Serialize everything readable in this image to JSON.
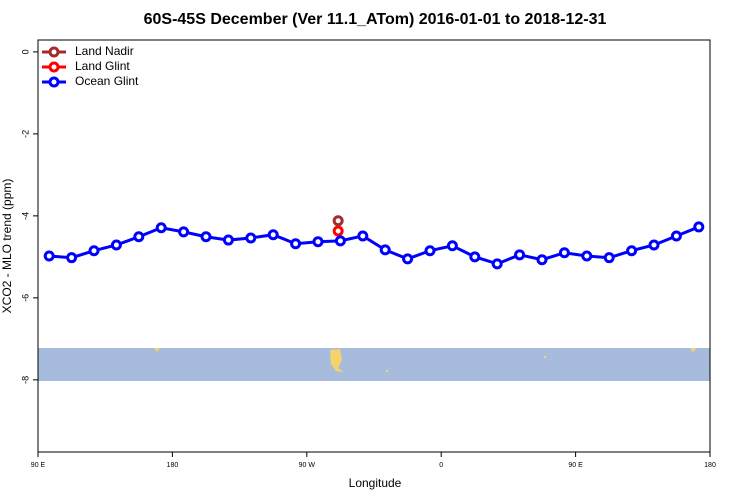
{
  "chart_data": {
    "type": "line",
    "title": "60S-45S December (Ver 11.1_ATom)   2016-01-01 to 2018-12-31",
    "xlabel": "Longitude",
    "ylabel": "XCO2 - MLO trend (ppm)",
    "xlim": [
      90,
      540
    ],
    "xticks": [
      {
        "value": 90,
        "label": "90 E"
      },
      180,
      {
        "value": 270,
        "label": "90 W"
      },
      {
        "value": 360,
        "label": "0"
      },
      {
        "value": 450,
        "label": "90 E"
      },
      {
        "value": 540,
        "label": "180"
      }
    ],
    "ylim": [
      -9.76,
      0.29
    ],
    "yticks": [
      0,
      -2,
      -4,
      -6,
      -8
    ],
    "legend": "top-left",
    "series": [
      {
        "name": "Land Nadir",
        "color": "#a52a2a",
        "x": [
          291
        ],
        "values": [
          -4.12
        ]
      },
      {
        "name": "Land Glint",
        "color": "#ff0000",
        "x": [
          291
        ],
        "values": [
          -4.37
        ]
      },
      {
        "name": "Ocean Glint",
        "color": "#0000ff",
        "x": [
          97.5,
          112.5,
          127.5,
          142.5,
          157.5,
          172.5,
          187.5,
          202.5,
          217.5,
          232.5,
          247.5,
          262.5,
          277.5,
          292.5,
          307.5,
          322.5,
          337.5,
          352.5,
          367.5,
          382.5,
          397.5,
          412.5,
          427.5,
          442.5,
          457.5,
          472.5,
          487.5,
          502.5,
          517.5,
          532.5
        ],
        "values": [
          -4.98,
          -5.02,
          -4.85,
          -4.71,
          -4.51,
          -4.29,
          -4.39,
          -4.51,
          -4.59,
          -4.54,
          -4.46,
          -4.68,
          -4.63,
          -4.61,
          -4.49,
          -4.83,
          -5.05,
          -4.85,
          -4.73,
          -5.0,
          -5.17,
          -4.95,
          -5.07,
          -4.9,
          -4.98,
          -5.02,
          -4.85,
          -4.71,
          -4.49,
          -4.27
        ]
      }
    ]
  }
}
